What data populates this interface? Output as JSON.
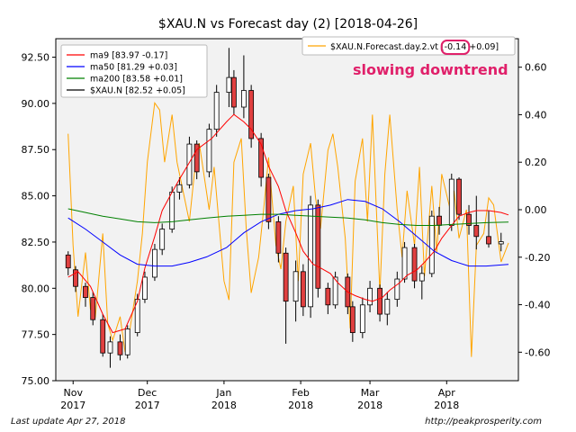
{
  "chart_data": {
    "type": "line",
    "title": "$XAU.N vs Forecast day (2)  [2018-04-26]",
    "annotation": "slowing downtrend",
    "left_axis": {
      "ylim": [
        75.0,
        93.5
      ],
      "ticks": [
        "75.00",
        "77.50",
        "80.00",
        "82.50",
        "85.00",
        "87.50",
        "90.00",
        "92.50"
      ]
    },
    "right_axis": {
      "ylim": [
        -0.72,
        0.72
      ],
      "ticks": [
        "-0.60",
        "-0.40",
        "-0.20",
        "0.00",
        "0.20",
        "0.40",
        "0.60"
      ]
    },
    "x_axis": {
      "date_range": [
        "2017-10-25",
        "2018-04-30"
      ],
      "ticks": [
        {
          "date": "2017-11-01",
          "line1": "Nov",
          "line2": "2017"
        },
        {
          "date": "2017-12-01",
          "line1": "Dec",
          "line2": "2017"
        },
        {
          "date": "2018-01-01",
          "line1": "Jan",
          "line2": "2018"
        },
        {
          "date": "2018-02-01",
          "line1": "Feb",
          "line2": "2018"
        },
        {
          "date": "2018-03-01",
          "line1": "Mar",
          "line2": "2018"
        },
        {
          "date": "2018-04-01",
          "line1": "Apr",
          "line2": "2018"
        }
      ]
    },
    "grid": false,
    "legend_left": {
      "placement": "top-left",
      "entries": [
        {
          "label": "ma9 [83.97 -0.17]",
          "color": "#ff0000"
        },
        {
          "label": "ma50 [81.29 +0.03]",
          "color": "#0000ff"
        },
        {
          "label": "ma200 [83.58 +0.01]",
          "color": "#008000"
        },
        {
          "label": "$XAU.N [82.52 +0.05]",
          "color": "#000000"
        }
      ]
    },
    "legend_right": {
      "placement": "top-right",
      "entries": [
        {
          "label_prefix": "$XAU.N.Forecast.day.2.vt [",
          "label_highlight": "-0.14",
          "label_suffix": " +0.09]",
          "color": "#ffa500"
        }
      ]
    },
    "colors": {
      "up_candle": "#ffffff",
      "down_candle": "#e04040",
      "highlight": "#e0206a",
      "background": "#f2f2f2"
    },
    "series": [
      {
        "name": "ma9",
        "axis": "left",
        "color": "#ff0000",
        "points": [
          [
            "2017-10-30",
            80.6
          ],
          [
            "2017-11-03",
            80.9
          ],
          [
            "2017-11-08",
            80.1
          ],
          [
            "2017-11-13",
            78.6
          ],
          [
            "2017-11-17",
            77.6
          ],
          [
            "2017-11-22",
            77.8
          ],
          [
            "2017-11-27",
            79.3
          ],
          [
            "2017-11-30",
            81.1
          ],
          [
            "2017-12-04",
            82.8
          ],
          [
            "2017-12-07",
            84.2
          ],
          [
            "2017-12-11",
            85.2
          ],
          [
            "2017-12-14",
            85.9
          ],
          [
            "2017-12-18",
            86.8
          ],
          [
            "2017-12-21",
            87.5
          ],
          [
            "2017-12-27",
            88.1
          ],
          [
            "2018-01-02",
            89.0
          ],
          [
            "2018-01-05",
            89.4
          ],
          [
            "2018-01-09",
            89.0
          ],
          [
            "2018-01-12",
            88.6
          ],
          [
            "2018-01-16",
            87.8
          ],
          [
            "2018-01-19",
            86.6
          ],
          [
            "2018-01-23",
            85.5
          ],
          [
            "2018-01-26",
            84.2
          ],
          [
            "2018-01-30",
            83.0
          ],
          [
            "2018-02-02",
            82.0
          ],
          [
            "2018-02-06",
            81.3
          ],
          [
            "2018-02-09",
            81.1
          ],
          [
            "2018-02-13",
            80.8
          ],
          [
            "2018-02-16",
            80.3
          ],
          [
            "2018-02-20",
            79.8
          ],
          [
            "2018-02-23",
            79.6
          ],
          [
            "2018-02-27",
            79.4
          ],
          [
            "2018-03-02",
            79.3
          ],
          [
            "2018-03-06",
            79.5
          ],
          [
            "2018-03-09",
            79.9
          ],
          [
            "2018-03-13",
            80.3
          ],
          [
            "2018-03-16",
            80.7
          ],
          [
            "2018-03-20",
            81.0
          ],
          [
            "2018-03-23",
            81.4
          ],
          [
            "2018-03-27",
            82.0
          ],
          [
            "2018-03-30",
            82.7
          ],
          [
            "2018-04-03",
            83.4
          ],
          [
            "2018-04-06",
            83.9
          ],
          [
            "2018-04-10",
            84.1
          ],
          [
            "2018-04-13",
            84.2
          ],
          [
            "2018-04-18",
            84.2
          ],
          [
            "2018-04-23",
            84.1
          ],
          [
            "2018-04-26",
            83.97
          ]
        ]
      },
      {
        "name": "ma50",
        "axis": "left",
        "color": "#0000ff",
        "points": [
          [
            "2017-10-30",
            83.8
          ],
          [
            "2017-11-06",
            83.2
          ],
          [
            "2017-11-13",
            82.5
          ],
          [
            "2017-11-20",
            81.8
          ],
          [
            "2017-11-27",
            81.3
          ],
          [
            "2017-12-04",
            81.2
          ],
          [
            "2017-12-11",
            81.2
          ],
          [
            "2017-12-18",
            81.4
          ],
          [
            "2017-12-25",
            81.7
          ],
          [
            "2018-01-02",
            82.2
          ],
          [
            "2018-01-09",
            83.0
          ],
          [
            "2018-01-16",
            83.6
          ],
          [
            "2018-01-23",
            84.0
          ],
          [
            "2018-01-30",
            84.2
          ],
          [
            "2018-02-06",
            84.3
          ],
          [
            "2018-02-13",
            84.5
          ],
          [
            "2018-02-20",
            84.8
          ],
          [
            "2018-02-27",
            84.7
          ],
          [
            "2018-03-06",
            84.3
          ],
          [
            "2018-03-13",
            83.6
          ],
          [
            "2018-03-20",
            82.8
          ],
          [
            "2018-03-27",
            82.0
          ],
          [
            "2018-04-03",
            81.5
          ],
          [
            "2018-04-10",
            81.2
          ],
          [
            "2018-04-17",
            81.2
          ],
          [
            "2018-04-26",
            81.29
          ]
        ]
      },
      {
        "name": "ma200",
        "axis": "left",
        "color": "#008000",
        "points": [
          [
            "2017-10-30",
            84.3
          ],
          [
            "2017-11-06",
            84.1
          ],
          [
            "2017-11-13",
            83.9
          ],
          [
            "2017-11-20",
            83.75
          ],
          [
            "2017-11-27",
            83.6
          ],
          [
            "2017-12-04",
            83.55
          ],
          [
            "2017-12-11",
            83.6
          ],
          [
            "2017-12-18",
            83.7
          ],
          [
            "2017-12-25",
            83.8
          ],
          [
            "2018-01-02",
            83.9
          ],
          [
            "2018-01-09",
            83.95
          ],
          [
            "2018-01-16",
            84.0
          ],
          [
            "2018-01-23",
            84.0
          ],
          [
            "2018-01-30",
            83.95
          ],
          [
            "2018-02-06",
            83.9
          ],
          [
            "2018-02-13",
            83.85
          ],
          [
            "2018-02-20",
            83.8
          ],
          [
            "2018-02-27",
            83.7
          ],
          [
            "2018-03-06",
            83.55
          ],
          [
            "2018-03-13",
            83.45
          ],
          [
            "2018-03-20",
            83.4
          ],
          [
            "2018-03-27",
            83.4
          ],
          [
            "2018-04-03",
            83.45
          ],
          [
            "2018-04-10",
            83.5
          ],
          [
            "2018-04-17",
            83.55
          ],
          [
            "2018-04-26",
            83.58
          ]
        ]
      },
      {
        "name": "$XAU.N.Forecast.day.2.vt",
        "axis": "right",
        "color": "#ffa500",
        "points": [
          [
            "2017-10-30",
            0.32
          ],
          [
            "2017-11-01",
            -0.15
          ],
          [
            "2017-11-03",
            -0.45
          ],
          [
            "2017-11-06",
            -0.18
          ],
          [
            "2017-11-08",
            -0.42
          ],
          [
            "2017-11-10",
            -0.45
          ],
          [
            "2017-11-13",
            -0.1
          ],
          [
            "2017-11-15",
            -0.48
          ],
          [
            "2017-11-17",
            -0.55
          ],
          [
            "2017-11-20",
            -0.45
          ],
          [
            "2017-11-22",
            -0.6
          ],
          [
            "2017-11-24",
            -0.5
          ],
          [
            "2017-11-27",
            -0.3
          ],
          [
            "2017-11-29",
            -0.1
          ],
          [
            "2017-12-01",
            0.2
          ],
          [
            "2017-12-04",
            0.45
          ],
          [
            "2017-12-06",
            0.42
          ],
          [
            "2017-12-08",
            0.2
          ],
          [
            "2017-12-11",
            0.4
          ],
          [
            "2017-12-13",
            0.2
          ],
          [
            "2017-12-15",
            0.1
          ],
          [
            "2017-12-18",
            -0.05
          ],
          [
            "2017-12-20",
            0.15
          ],
          [
            "2017-12-22",
            0.28
          ],
          [
            "2017-12-26",
            0.0
          ],
          [
            "2017-12-28",
            0.18
          ],
          [
            "2018-01-01",
            -0.3
          ],
          [
            "2018-01-03",
            -0.38
          ],
          [
            "2018-01-05",
            0.2
          ],
          [
            "2018-01-08",
            0.3
          ],
          [
            "2018-01-10",
            -0.08
          ],
          [
            "2018-01-12",
            -0.35
          ],
          [
            "2018-01-15",
            -0.2
          ],
          [
            "2018-01-17",
            0.0
          ],
          [
            "2018-01-19",
            0.22
          ],
          [
            "2018-01-22",
            -0.15
          ],
          [
            "2018-01-24",
            -0.25
          ],
          [
            "2018-01-26",
            -0.05
          ],
          [
            "2018-01-29",
            0.1
          ],
          [
            "2018-01-31",
            -0.3
          ],
          [
            "2018-02-02",
            0.15
          ],
          [
            "2018-02-05",
            0.28
          ],
          [
            "2018-02-07",
            0.05
          ],
          [
            "2018-02-09",
            -0.08
          ],
          [
            "2018-02-12",
            0.25
          ],
          [
            "2018-02-14",
            0.32
          ],
          [
            "2018-02-16",
            0.18
          ],
          [
            "2018-02-19",
            -0.12
          ],
          [
            "2018-02-21",
            -0.5
          ],
          [
            "2018-02-23",
            0.12
          ],
          [
            "2018-02-26",
            0.3
          ],
          [
            "2018-02-28",
            -0.05
          ],
          [
            "2018-03-02",
            0.4
          ],
          [
            "2018-03-05",
            -0.35
          ],
          [
            "2018-03-07",
            0.15
          ],
          [
            "2018-03-09",
            0.4
          ],
          [
            "2018-03-12",
            0.0
          ],
          [
            "2018-03-14",
            -0.2
          ],
          [
            "2018-03-16",
            0.08
          ],
          [
            "2018-03-19",
            -0.15
          ],
          [
            "2018-03-21",
            0.18
          ],
          [
            "2018-03-23",
            -0.28
          ],
          [
            "2018-03-26",
            0.1
          ],
          [
            "2018-03-28",
            -0.18
          ],
          [
            "2018-03-30",
            0.15
          ],
          [
            "2018-04-02",
            0.02
          ],
          [
            "2018-04-04",
            0.08
          ],
          [
            "2018-04-06",
            -0.12
          ],
          [
            "2018-04-09",
            0.0
          ],
          [
            "2018-04-11",
            -0.62
          ],
          [
            "2018-04-13",
            -0.15
          ],
          [
            "2018-04-16",
            -0.1
          ],
          [
            "2018-04-18",
            0.05
          ],
          [
            "2018-04-20",
            0.02
          ],
          [
            "2018-04-23",
            -0.22
          ],
          [
            "2018-04-26",
            -0.14
          ]
        ]
      }
    ],
    "candles": [
      [
        "2017-10-30",
        81.8,
        82.0,
        80.7,
        81.1
      ],
      [
        "2017-11-02",
        81.0,
        81.2,
        79.8,
        80.1
      ],
      [
        "2017-11-06",
        80.1,
        80.3,
        79.0,
        79.5
      ],
      [
        "2017-11-09",
        79.5,
        79.8,
        78.0,
        78.3
      ],
      [
        "2017-11-13",
        78.3,
        78.6,
        76.3,
        76.5
      ],
      [
        "2017-11-16",
        76.5,
        77.4,
        75.7,
        77.1
      ],
      [
        "2017-11-20",
        77.1,
        77.5,
        76.1,
        76.4
      ],
      [
        "2017-11-23",
        76.4,
        78.0,
        76.2,
        77.8
      ],
      [
        "2017-11-27",
        77.6,
        79.7,
        77.4,
        79.4
      ],
      [
        "2017-11-30",
        79.4,
        80.9,
        79.2,
        80.6
      ],
      [
        "2017-12-04",
        80.6,
        82.4,
        80.4,
        82.1
      ],
      [
        "2017-12-07",
        82.1,
        83.5,
        81.8,
        83.2
      ],
      [
        "2017-12-11",
        83.2,
        85.5,
        83.0,
        85.2
      ],
      [
        "2017-12-14",
        85.2,
        86.0,
        84.8,
        85.6
      ],
      [
        "2017-12-18",
        85.6,
        88.2,
        85.4,
        87.8
      ],
      [
        "2017-12-21",
        87.8,
        88.0,
        85.9,
        86.3
      ],
      [
        "2017-12-26",
        86.3,
        88.9,
        86.0,
        88.6
      ],
      [
        "2017-12-29",
        88.6,
        91.0,
        88.2,
        90.6
      ],
      [
        "2018-01-03",
        90.6,
        93.0,
        89.8,
        91.4
      ],
      [
        "2018-01-05",
        91.4,
        91.8,
        89.4,
        89.8
      ],
      [
        "2018-01-09",
        89.8,
        92.6,
        89.2,
        90.7
      ],
      [
        "2018-01-12",
        90.7,
        91.0,
        87.6,
        88.1
      ],
      [
        "2018-01-16",
        88.1,
        88.4,
        85.5,
        86.0
      ],
      [
        "2018-01-19",
        86.0,
        86.2,
        83.2,
        83.6
      ],
      [
        "2018-01-23",
        83.6,
        83.9,
        81.4,
        81.9
      ],
      [
        "2018-01-26",
        81.9,
        82.2,
        77.0,
        79.3
      ],
      [
        "2018-01-30",
        79.3,
        81.5,
        78.2,
        80.9
      ],
      [
        "2018-02-02",
        80.9,
        81.3,
        78.5,
        79.0
      ],
      [
        "2018-02-05",
        79.0,
        85.0,
        78.4,
        84.5
      ],
      [
        "2018-02-08",
        84.5,
        84.8,
        79.5,
        80.0
      ],
      [
        "2018-02-12",
        80.0,
        80.3,
        78.6,
        79.1
      ],
      [
        "2018-02-15",
        79.1,
        80.9,
        78.9,
        80.6
      ],
      [
        "2018-02-20",
        80.6,
        80.8,
        78.6,
        79.0
      ],
      [
        "2018-02-22",
        79.0,
        79.3,
        77.1,
        77.6
      ],
      [
        "2018-02-26",
        77.6,
        79.5,
        77.3,
        79.1
      ],
      [
        "2018-03-01",
        79.1,
        80.4,
        78.7,
        80.0
      ],
      [
        "2018-03-05",
        80.0,
        80.2,
        78.2,
        78.6
      ],
      [
        "2018-03-08",
        78.6,
        79.8,
        78.0,
        79.4
      ],
      [
        "2018-03-12",
        79.4,
        80.9,
        79.0,
        80.5
      ],
      [
        "2018-03-15",
        80.5,
        82.5,
        80.3,
        82.2
      ],
      [
        "2018-03-19",
        82.2,
        82.4,
        80.0,
        80.4
      ],
      [
        "2018-03-22",
        80.4,
        81.2,
        79.4,
        80.8
      ],
      [
        "2018-03-26",
        80.8,
        84.2,
        80.6,
        83.9
      ],
      [
        "2018-03-29",
        83.9,
        84.4,
        82.9,
        83.4
      ],
      [
        "2018-04-03",
        83.4,
        86.2,
        83.1,
        85.9
      ],
      [
        "2018-04-06",
        85.9,
        86.0,
        83.7,
        84.0
      ],
      [
        "2018-04-10",
        84.0,
        84.5,
        82.9,
        83.4
      ],
      [
        "2018-04-13",
        83.4,
        85.0,
        82.1,
        82.8
      ],
      [
        "2018-04-18",
        82.8,
        84.2,
        82.2,
        82.4
      ],
      [
        "2018-04-23",
        82.4,
        83.0,
        82.0,
        82.52
      ]
    ]
  },
  "footer": {
    "last_update": "Last update Apr 27, 2018",
    "source": "http://peakprosperity.com"
  }
}
